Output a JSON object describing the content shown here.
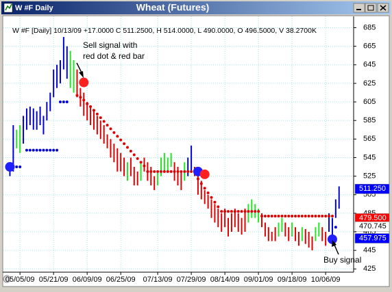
{
  "window_title": "W #F Daily",
  "chart_data": {
    "type": "ohlc",
    "title": "Wheat (Futures)",
    "subtitle": "W #F [Daily] 10/13/09  +17.0000 C 511.2500, H 514.0000, L 490.0000, O 496.5000, V 38.2700K",
    "high": [
      540,
      580,
      575,
      580,
      590,
      598,
      600,
      598,
      595,
      600,
      590,
      605,
      615,
      640,
      645,
      650,
      675,
      665,
      660,
      650,
      640,
      620,
      615,
      605,
      600,
      595,
      590,
      585,
      580,
      570,
      565,
      560,
      555,
      550,
      545,
      540,
      545,
      535,
      530,
      540,
      545,
      540,
      535,
      525,
      530,
      545,
      550,
      545,
      550,
      540,
      535,
      530,
      540,
      545,
      558,
      535,
      530,
      520,
      510,
      505,
      500,
      495,
      490,
      485,
      490,
      480,
      485,
      490,
      485,
      480,
      490,
      495,
      500,
      495,
      490,
      485,
      475,
      470,
      465,
      470,
      475,
      480,
      475,
      470,
      475,
      470,
      465,
      470,
      468,
      465,
      460,
      470,
      475,
      470,
      465,
      485,
      480,
      500,
      514
    ],
    "low": [
      525,
      530,
      555,
      550,
      560,
      575,
      580,
      575,
      575,
      580,
      570,
      585,
      595,
      610,
      620,
      625,
      640,
      630,
      620,
      615,
      610,
      600,
      590,
      585,
      580,
      575,
      570,
      565,
      560,
      555,
      545,
      540,
      530,
      530,
      525,
      520,
      525,
      515,
      515,
      520,
      530,
      520,
      515,
      510,
      515,
      525,
      530,
      530,
      535,
      520,
      515,
      510,
      520,
      525,
      530,
      525,
      505,
      500,
      495,
      490,
      480,
      475,
      470,
      465,
      470,
      460,
      465,
      470,
      465,
      462,
      465,
      475,
      480,
      480,
      475,
      470,
      460,
      455,
      455,
      455,
      460,
      465,
      460,
      455,
      460,
      455,
      450,
      455,
      452,
      448,
      445,
      455,
      460,
      455,
      450,
      465,
      460,
      480,
      490
    ],
    "bar_states": "bbggbbbbbbbbbbbbbbggrrrrrrrrrrrrrrrgrrrgrrrrgggggrrrgbbrrrrrrrrrrrrrrrrggggrrrrrggrrgrrgrrrggrrbbbb",
    "state_colors": {
      "b": "#0000d8",
      "g": "#22e622",
      "r": "#e00000"
    },
    "stops": [
      535,
      535,
      535,
      535,
      null,
      553,
      553,
      553,
      553,
      553,
      553,
      553,
      553,
      553,
      553,
      605,
      605,
      605,
      null,
      null,
      612,
      610,
      607,
      603,
      600,
      596,
      592,
      588,
      584,
      580,
      576,
      572,
      568,
      564,
      560,
      556,
      552,
      548,
      544,
      540,
      536,
      530,
      530,
      530,
      530,
      530,
      530,
      530,
      530,
      530,
      530,
      530,
      530,
      530,
      530,
      530,
      522,
      517,
      512,
      507,
      502,
      497,
      492,
      487,
      487,
      487,
      487,
      487,
      487,
      487,
      487,
      487,
      487,
      487,
      487,
      482,
      482,
      482,
      482,
      482,
      482,
      482,
      482,
      482,
      482,
      482,
      482,
      482,
      482,
      482,
      482,
      482,
      482,
      482,
      482,
      482,
      482,
      470,
      null
    ],
    "stop_states": "bbbbbbbbbbbbbbbbbbrrrrrrrrrrrrrrrrrrrrrrrrrrrrrrrrrrrrrrrrrrrrrrrrrrrrrrrrrrrrrrrrrrrrrrrrrrrrrrrbb",
    "signals": [
      {
        "x": 0,
        "y": 535,
        "state": "b"
      },
      {
        "x": 22,
        "y": 626,
        "state": "r"
      },
      {
        "x": 56,
        "y": 530,
        "state": "b"
      },
      {
        "x": 58,
        "y": 527,
        "state": "r"
      },
      {
        "x": 96,
        "y": 457,
        "state": "b"
      }
    ],
    "price_tags": [
      {
        "value": 511.25,
        "label": "511.250",
        "color": "#0000ff"
      },
      {
        "value": 479.5,
        "label": "479.500",
        "color": "#ff0000"
      },
      {
        "value": 470.745,
        "label": "470.745",
        "color": "#ffffff"
      },
      {
        "value": 457.975,
        "label": "457.975",
        "color": "#0000ff"
      }
    ],
    "annotations": {
      "sell": [
        "Sell signal with",
        "red dot & red bar"
      ],
      "buy": "Buy signal"
    },
    "xlim": [
      -0.5,
      100.5
    ],
    "ylim": [
      423,
      692
    ],
    "yticks": [
      425,
      445,
      465,
      485,
      505,
      525,
      545,
      565,
      585,
      605,
      625,
      645,
      665,
      685
    ],
    "xticks": [
      {
        "value": 3,
        "label": "05/05/09"
      },
      {
        "value": 13,
        "label": "05/21/09"
      },
      {
        "value": 23,
        "label": "06/09/09"
      },
      {
        "value": 33,
        "label": "06/25/09"
      },
      {
        "value": 44,
        "label": "07/13/09"
      },
      {
        "value": 54,
        "label": "07/29/09"
      },
      {
        "value": 64,
        "label": "08/14/09"
      },
      {
        "value": 74,
        "label": "09/01/09"
      },
      {
        "value": 84,
        "label": "09/18/09"
      },
      {
        "value": 94,
        "label": "10/06/09"
      }
    ],
    "grid": true
  }
}
